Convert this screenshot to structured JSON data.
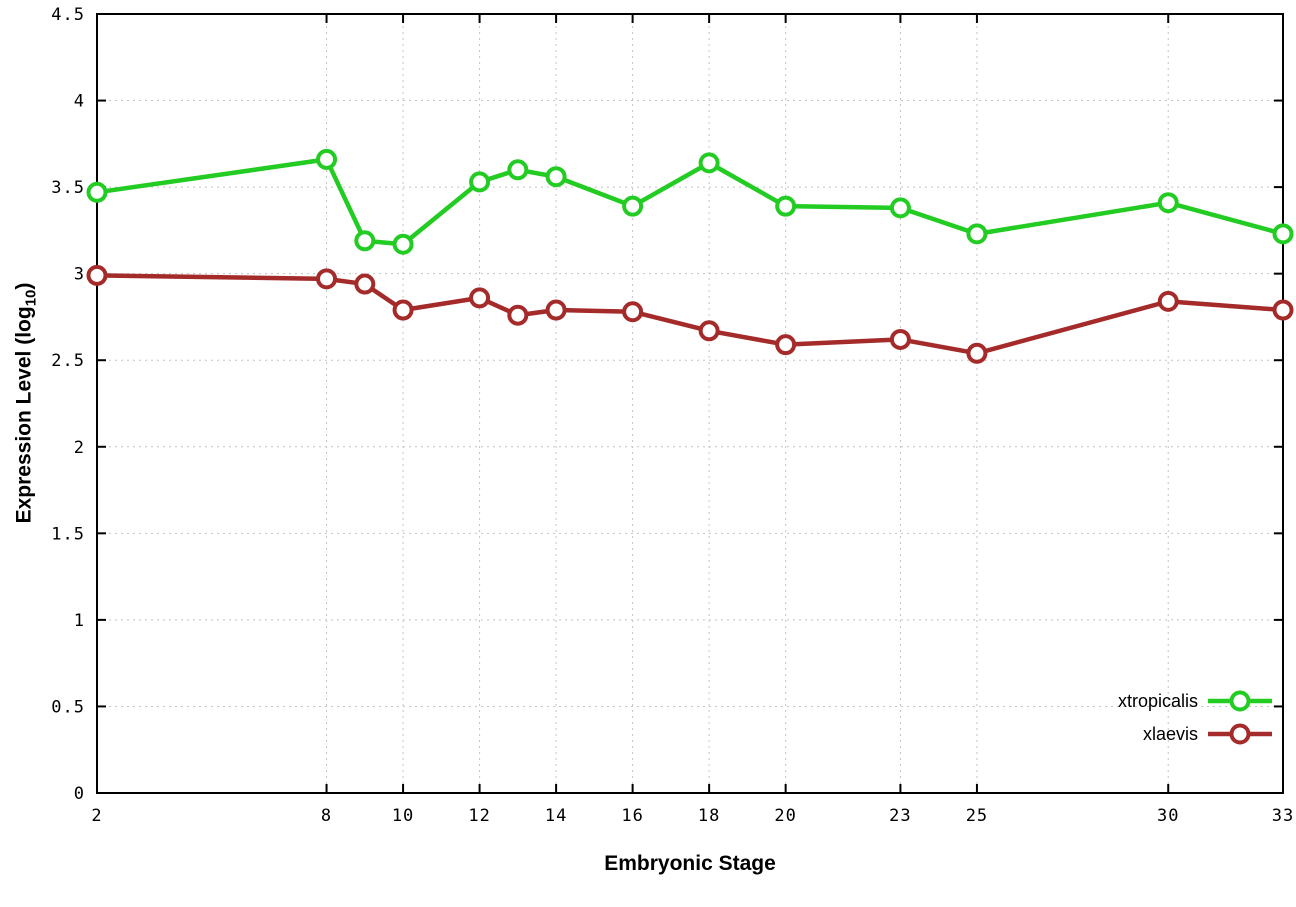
{
  "page": {
    "background": "#ffffff"
  },
  "chart_data": {
    "type": "line",
    "title": "",
    "xlabel": "Embryonic Stage",
    "ylabel": "Expression Level (log10)",
    "ylabel_parts": {
      "main": "Expression Level (log",
      "sub": "10",
      "end": ")"
    },
    "x": [
      2,
      8,
      9,
      10,
      12,
      13,
      14,
      16,
      18,
      20,
      23,
      25,
      30,
      33
    ],
    "xticks": [
      2,
      8,
      10,
      12,
      14,
      16,
      18,
      20,
      23,
      25,
      30,
      33
    ],
    "yticks": [
      0,
      0.5,
      1,
      1.5,
      2,
      2.5,
      3,
      3.5,
      4,
      4.5
    ],
    "xlim": [
      2,
      33
    ],
    "ylim": [
      0,
      4.5
    ],
    "grid": true,
    "legend_position": "bottom-right",
    "series": [
      {
        "name": "xtropicalis",
        "color": "#22cc22",
        "values": [
          3.47,
          3.66,
          3.19,
          3.17,
          3.53,
          3.6,
          3.56,
          3.39,
          3.64,
          3.39,
          3.38,
          3.23,
          3.41,
          3.23
        ]
      },
      {
        "name": "xlaevis",
        "color": "#a52a2a",
        "values": [
          2.99,
          2.97,
          2.94,
          2.79,
          2.86,
          2.76,
          2.79,
          2.78,
          2.67,
          2.59,
          2.62,
          2.54,
          2.84,
          2.79
        ]
      }
    ]
  }
}
